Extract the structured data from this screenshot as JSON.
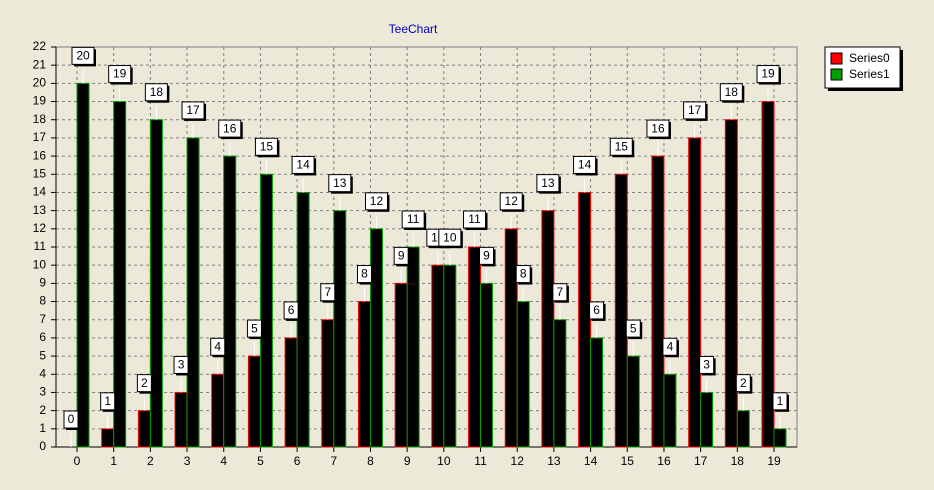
{
  "chart_data": {
    "type": "bar",
    "title": "TeeChart",
    "categories": [
      "0",
      "1",
      "2",
      "3",
      "4",
      "5",
      "6",
      "7",
      "8",
      "9",
      "10",
      "11",
      "12",
      "13",
      "14",
      "15",
      "16",
      "17",
      "18",
      "19"
    ],
    "series": [
      {
        "name": "Series0",
        "color": "#ff0000",
        "values": [
          0,
          1,
          2,
          3,
          4,
          5,
          6,
          7,
          8,
          9,
          10,
          11,
          12,
          13,
          14,
          15,
          16,
          17,
          18,
          19
        ]
      },
      {
        "name": "Series1",
        "color": "#00a000",
        "values": [
          20,
          19,
          18,
          17,
          16,
          15,
          14,
          13,
          12,
          11,
          10,
          9,
          8,
          7,
          6,
          5,
          4,
          3,
          2,
          1
        ]
      }
    ],
    "ylim": [
      0,
      22
    ],
    "yticks": [
      0,
      1,
      2,
      3,
      4,
      5,
      6,
      7,
      8,
      9,
      10,
      11,
      12,
      13,
      14,
      15,
      16,
      17,
      18,
      19,
      20,
      21,
      22
    ],
    "grid": true,
    "legend": "right"
  }
}
